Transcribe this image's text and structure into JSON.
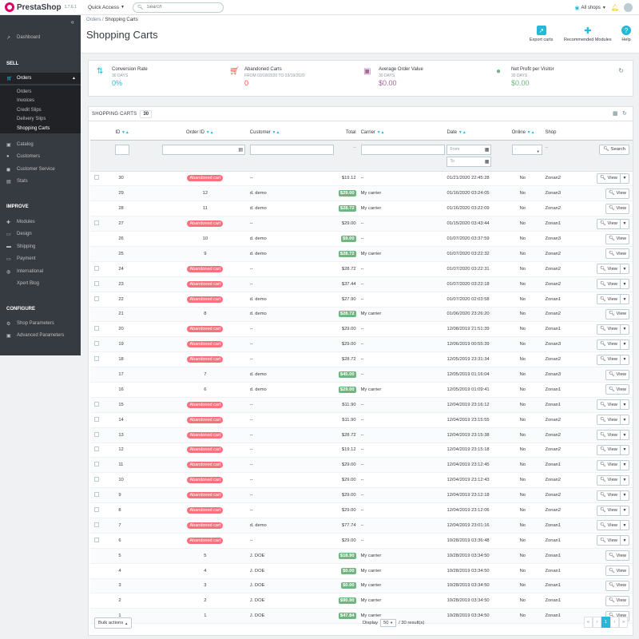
{
  "app": {
    "name": "PrestaShop",
    "version": "1.7.6.1"
  },
  "topbar": {
    "quick_access": "Quick Access",
    "search_placeholder": "Search",
    "shop_selector": "All shops"
  },
  "sidebar": {
    "dashboard": "Dashboard",
    "section_sell": "SELL",
    "orders": "Orders",
    "orders_sub": [
      "Orders",
      "Invoices",
      "Credit Slips",
      "Delivery Slips",
      "Shopping Carts"
    ],
    "catalog": "Catalog",
    "customers": "Customers",
    "customer_service": "Customer Service",
    "stats": "Stats",
    "section_improve": "IMPROVE",
    "modules": "Modules",
    "design": "Design",
    "shipping": "Shipping",
    "payment": "Payment",
    "international": "International",
    "xpert_blog": "Xpert Blog",
    "section_configure": "CONFIGURE",
    "shop_parameters": "Shop Parameters",
    "advanced_parameters": "Advanced Parameters"
  },
  "header": {
    "breadcrumb_parent": "Orders",
    "breadcrumb_sep": "/",
    "breadcrumb_current": "Shopping Carts",
    "title": "Shopping Carts",
    "export_carts": "Export carts",
    "recommended_modules": "Recommended Modules",
    "help": "Help"
  },
  "kpis": [
    {
      "label": "Conversion Rate",
      "sub": "30 DAYS",
      "value": "0%",
      "color": "#25b9d7"
    },
    {
      "label": "Abandoned Carts",
      "sub": "FROM 03/18/2020 TO 03/19/2020",
      "value": "0",
      "color": "#f54c3e"
    },
    {
      "label": "Average Order Value",
      "sub": "30 DAYS",
      "value": "$0.00",
      "color": "#a5689c"
    },
    {
      "label": "Net Profit per Visitor",
      "sub": "30 DAYS",
      "value": "$0.00",
      "color": "#70b580"
    }
  ],
  "panel": {
    "title": "SHOPPING CARTS",
    "count": "30",
    "columns": {
      "id": "ID",
      "order_id": "Order ID",
      "customer": "Customer",
      "total": "Total",
      "carrier": "Carrier",
      "date": "Date",
      "online": "Online",
      "shop": "Shop"
    },
    "filter": {
      "date_from": "From",
      "date_to": "To",
      "dash": "--",
      "online_select": "-",
      "search": "Search"
    },
    "abandoned_label": "Abandoned cart",
    "view_label": "View"
  },
  "rows": [
    {
      "id": "30",
      "order": "",
      "customer": "--",
      "total": "$19.12",
      "paid": false,
      "carrier": "--",
      "date": "01/21/2020 22:45:28",
      "online": "No",
      "shop": "Zonan2"
    },
    {
      "id": "29",
      "order": "12",
      "customer": "d. demo",
      "total": "$29.00",
      "paid": true,
      "carrier": "My carrier",
      "date": "01/16/2020 03:24:05",
      "online": "No",
      "shop": "Zonan3"
    },
    {
      "id": "28",
      "order": "11",
      "customer": "d. demo",
      "total": "$28.72",
      "paid": true,
      "carrier": "My carrier",
      "date": "01/16/2020 03:22:09",
      "online": "No",
      "shop": "Zonan2"
    },
    {
      "id": "27",
      "order": "",
      "customer": "--",
      "total": "$29.00",
      "paid": false,
      "carrier": "--",
      "date": "01/15/2020 03:43:44",
      "online": "No",
      "shop": "Zonan1"
    },
    {
      "id": "26",
      "order": "10",
      "customer": "d. demo",
      "total": "$9.00",
      "paid": true,
      "carrier": "--",
      "date": "01/07/2020 03:37:59",
      "online": "No",
      "shop": "Zonan3"
    },
    {
      "id": "25",
      "order": "9",
      "customer": "d. demo",
      "total": "$28.72",
      "paid": true,
      "carrier": "My carrier",
      "date": "01/07/2020 03:22:32",
      "online": "No",
      "shop": "Zonan2"
    },
    {
      "id": "24",
      "order": "",
      "customer": "--",
      "total": "$28.72",
      "paid": false,
      "carrier": "--",
      "date": "01/07/2020 03:22:31",
      "online": "No",
      "shop": "Zonan2"
    },
    {
      "id": "23",
      "order": "",
      "customer": "--",
      "total": "$37.44",
      "paid": false,
      "carrier": "--",
      "date": "01/07/2020 03:22:18",
      "online": "No",
      "shop": "Zonan2"
    },
    {
      "id": "22",
      "order": "",
      "customer": "d. demo",
      "total": "$27.90",
      "paid": false,
      "carrier": "--",
      "date": "01/07/2020 02:03:58",
      "online": "No",
      "shop": "Zonan1"
    },
    {
      "id": "21",
      "order": "8",
      "customer": "d. demo",
      "total": "$28.72",
      "paid": true,
      "carrier": "My carrier",
      "date": "01/06/2020 23:26:20",
      "online": "No",
      "shop": "Zonan2"
    },
    {
      "id": "20",
      "order": "",
      "customer": "--",
      "total": "$29.00",
      "paid": false,
      "carrier": "--",
      "date": "12/08/2019 21:51:39",
      "online": "No",
      "shop": "Zonan1"
    },
    {
      "id": "19",
      "order": "",
      "customer": "--",
      "total": "$29.00",
      "paid": false,
      "carrier": "--",
      "date": "12/06/2019 00:55:39",
      "online": "No",
      "shop": "Zonan3"
    },
    {
      "id": "18",
      "order": "",
      "customer": "--",
      "total": "$28.72",
      "paid": false,
      "carrier": "--",
      "date": "12/05/2019 23:31:34",
      "online": "No",
      "shop": "Zonan2"
    },
    {
      "id": "17",
      "order": "7",
      "customer": "d. demo",
      "total": "$45.00",
      "paid": true,
      "carrier": "--",
      "date": "12/05/2019 01:16:04",
      "online": "No",
      "shop": "Zonan3"
    },
    {
      "id": "16",
      "order": "6",
      "customer": "d. demo",
      "total": "$29.00",
      "paid": true,
      "carrier": "My carrier",
      "date": "12/05/2019 01:09:41",
      "online": "No",
      "shop": "Zonan1"
    },
    {
      "id": "15",
      "order": "",
      "customer": "--",
      "total": "$11.90",
      "paid": false,
      "carrier": "--",
      "date": "12/04/2019 23:16:12",
      "online": "No",
      "shop": "Zonan1"
    },
    {
      "id": "14",
      "order": "",
      "customer": "--",
      "total": "$11.90",
      "paid": false,
      "carrier": "--",
      "date": "12/04/2019 23:15:55",
      "online": "No",
      "shop": "Zonan2"
    },
    {
      "id": "13",
      "order": "",
      "customer": "--",
      "total": "$28.72",
      "paid": false,
      "carrier": "--",
      "date": "12/04/2019 23:15:38",
      "online": "No",
      "shop": "Zonan2"
    },
    {
      "id": "12",
      "order": "",
      "customer": "--",
      "total": "$19.12",
      "paid": false,
      "carrier": "--",
      "date": "12/04/2019 23:15:18",
      "online": "No",
      "shop": "Zonan2"
    },
    {
      "id": "11",
      "order": "",
      "customer": "--",
      "total": "$29.00",
      "paid": false,
      "carrier": "--",
      "date": "12/04/2019 23:12:45",
      "online": "No",
      "shop": "Zonan1"
    },
    {
      "id": "10",
      "order": "",
      "customer": "--",
      "total": "$29.00",
      "paid": false,
      "carrier": "--",
      "date": "12/04/2019 23:12:43",
      "online": "No",
      "shop": "Zonan2"
    },
    {
      "id": "9",
      "order": "",
      "customer": "--",
      "total": "$29.00",
      "paid": false,
      "carrier": "--",
      "date": "12/04/2019 23:12:18",
      "online": "No",
      "shop": "Zonan2"
    },
    {
      "id": "8",
      "order": "",
      "customer": "--",
      "total": "$29.00",
      "paid": false,
      "carrier": "--",
      "date": "12/04/2019 23:12:06",
      "online": "No",
      "shop": "Zonan2"
    },
    {
      "id": "7",
      "order": "",
      "customer": "d. demo",
      "total": "$77.74",
      "paid": false,
      "carrier": "--",
      "date": "12/04/2019 23:01:16",
      "online": "No",
      "shop": "Zonan1"
    },
    {
      "id": "6",
      "order": "",
      "customer": "--",
      "total": "$29.00",
      "paid": false,
      "carrier": "--",
      "date": "10/28/2019 03:36:48",
      "online": "No",
      "shop": "Zonan1"
    },
    {
      "id": "5",
      "order": "5",
      "customer": "J. DOE",
      "total": "$18.90",
      "paid": true,
      "carrier": "My carrier",
      "date": "10/28/2019 03:34:50",
      "online": "No",
      "shop": "Zonan1"
    },
    {
      "id": "4",
      "order": "4",
      "customer": "J. DOE",
      "total": "$0.00",
      "paid": true,
      "carrier": "My carrier",
      "date": "10/28/2019 03:34:50",
      "online": "No",
      "shop": "Zonan1"
    },
    {
      "id": "3",
      "order": "3",
      "customer": "J. DOE",
      "total": "$0.00",
      "paid": true,
      "carrier": "My carrier",
      "date": "10/28/2019 03:34:50",
      "online": "No",
      "shop": "Zonan1"
    },
    {
      "id": "2",
      "order": "2",
      "customer": "J. DOE",
      "total": "$90.90",
      "paid": true,
      "carrier": "My carrier",
      "date": "10/28/2019 03:34:50",
      "online": "No",
      "shop": "Zonan1"
    },
    {
      "id": "1",
      "order": "1",
      "customer": "J. DOE",
      "total": "$47.84",
      "paid": true,
      "carrier": "My carrier",
      "date": "10/28/2019 03:34:50",
      "online": "No",
      "shop": "Zonan1"
    }
  ],
  "footer": {
    "bulk_actions": "Bulk actions",
    "display": "Display",
    "per_page": "50",
    "result_count": "/ 30 result(s)",
    "page": "1"
  }
}
